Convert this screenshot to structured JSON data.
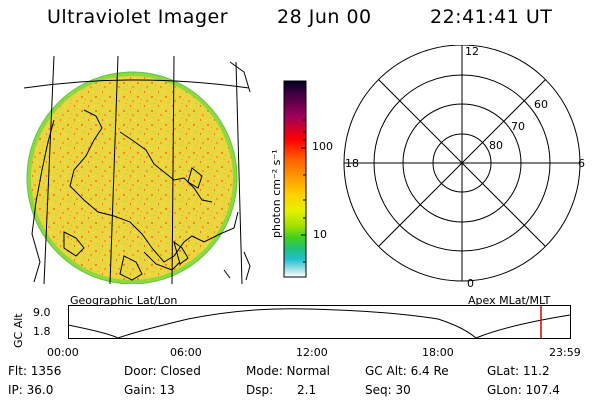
{
  "header": {
    "instrument": "Ultraviolet Imager",
    "date": "28 Jun 00",
    "time": "22:41:41 UT"
  },
  "image_panel": {
    "label": "Geographic Lat/Lon"
  },
  "colorbar": {
    "unit_label": "photon cm⁻² s⁻¹",
    "tick_labels": [
      "100",
      "10"
    ],
    "colors": [
      "#000020",
      "#3a0040",
      "#a0005a",
      "#ff0000",
      "#ff6000",
      "#ffa000",
      "#ffd000",
      "#e8f000",
      "#a0e000",
      "#40d020",
      "#20c080",
      "#20c0d0",
      "#a0e0e8",
      "#ffffff"
    ]
  },
  "polar_plot": {
    "label": "Apex MLat/MLT",
    "mlt_labels": {
      "top": "12",
      "left": "18",
      "right": "6",
      "bottom": "0"
    },
    "lat_labels": [
      "60",
      "70",
      "80"
    ]
  },
  "altitude_plot": {
    "axis_label": "GC Alt",
    "y_ticks": [
      "9.0",
      "1.8"
    ],
    "time_ticks": [
      "00:00",
      "06:00",
      "12:00",
      "18:00",
      "23:59"
    ],
    "marker_color": "#e00000"
  },
  "info": {
    "flt": "Flt: 1356",
    "ip": "IP: 36.0",
    "door": "Door: Closed",
    "gain": "Gain: 13",
    "mode": "Mode: Normal",
    "dsp_label": "Dsp:",
    "dsp_value": "2.1",
    "gc_alt": "GC Alt: 6.4 Re",
    "seq": "Seq: 30",
    "glat": "GLat: 11.2",
    "glon": "GLon: 107.4"
  }
}
